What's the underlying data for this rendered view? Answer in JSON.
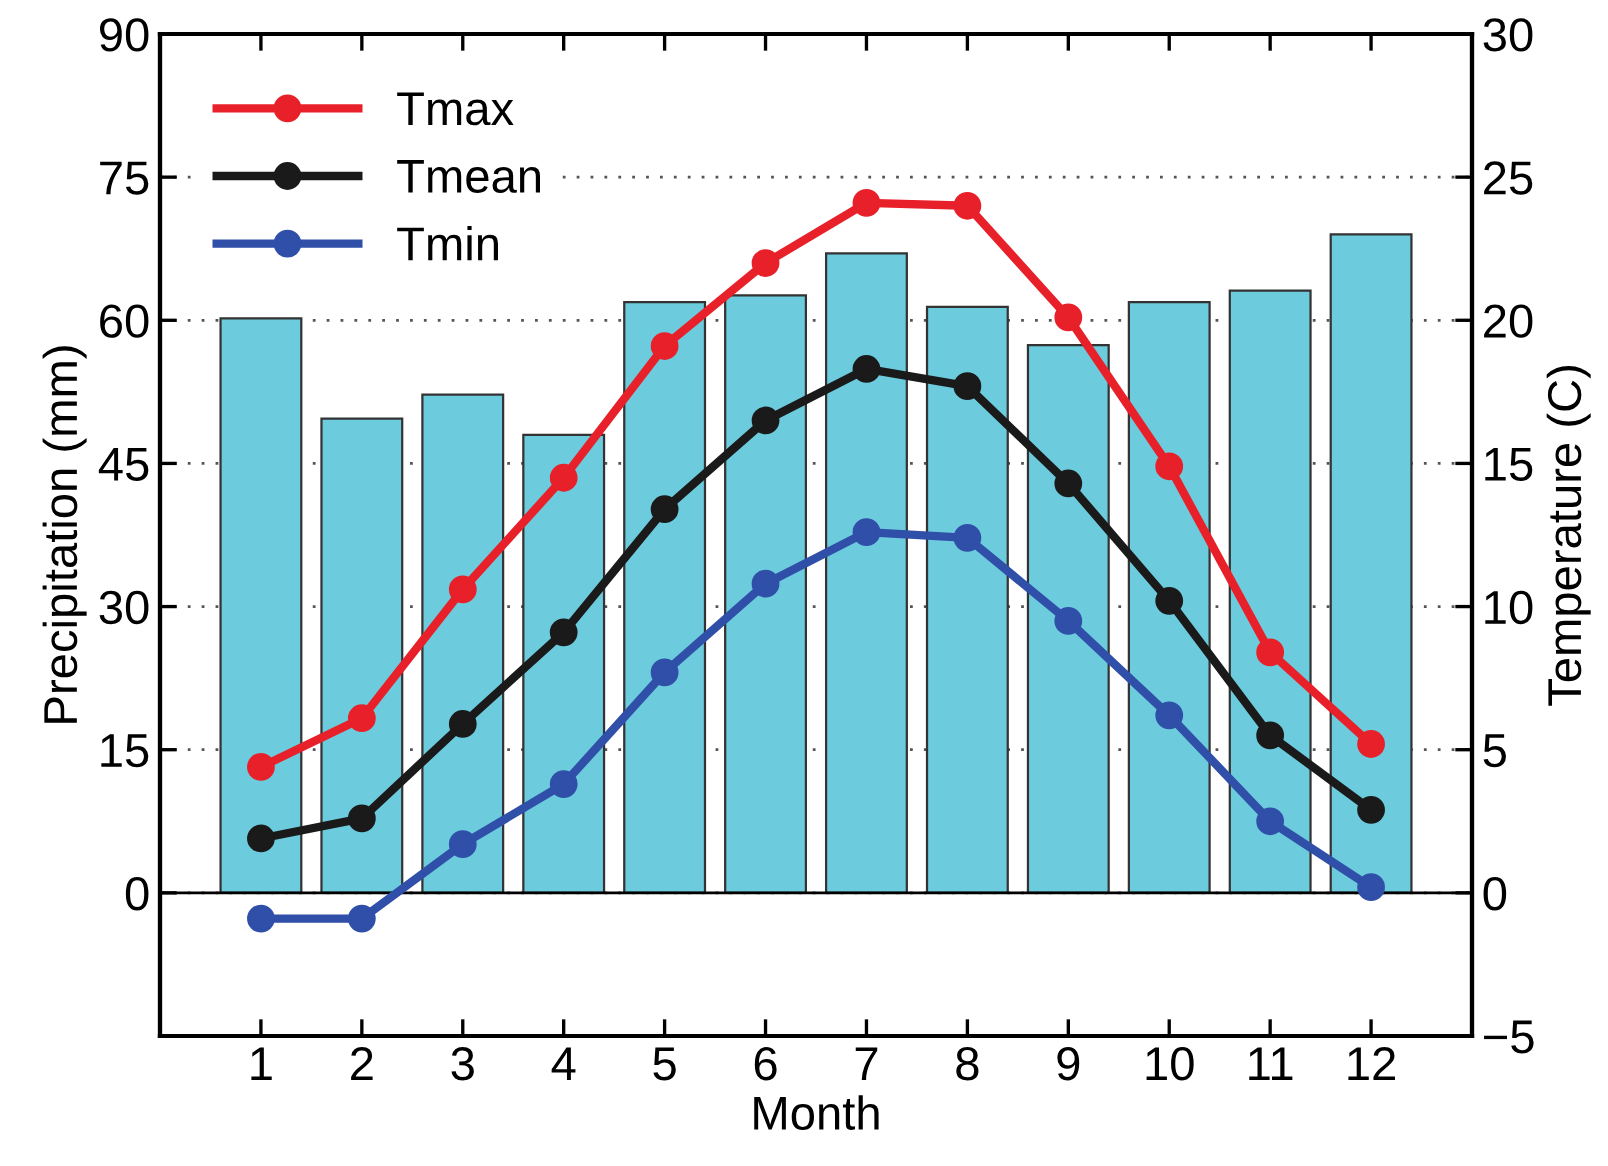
{
  "chart_data": {
    "type": "bar",
    "xlabel": "Month",
    "ylabel": "Precipitation (mm)",
    "y2label": "Temperature (C)",
    "x": [
      1,
      2,
      3,
      4,
      5,
      6,
      7,
      8,
      9,
      10,
      11,
      12
    ],
    "xlim": [
      0,
      13
    ],
    "xticks": [
      1,
      2,
      3,
      4,
      5,
      6,
      7,
      8,
      9,
      10,
      11,
      12
    ],
    "ylim": [
      -15,
      90
    ],
    "yticks": [
      0,
      15,
      30,
      45,
      60,
      75,
      90
    ],
    "y2lim": [
      -5,
      30
    ],
    "y2ticks": [
      -5,
      0,
      5,
      10,
      15,
      20,
      25,
      30
    ],
    "grid": "y",
    "legend": "top left",
    "marker": "circle",
    "ref_lines": [
      {
        "axis": "y",
        "value": 0,
        "color": "#000000",
        "line_style": "solid"
      }
    ],
    "series": [
      {
        "color": "#6ccbdc",
        "values": [
          60.2,
          49.7,
          52.2,
          48.0,
          61.9,
          62.6,
          67.0,
          61.4,
          57.4,
          61.9,
          63.1,
          69.0
        ]
      },
      {
        "type": "line",
        "axis": "y2",
        "name": "Tmax",
        "color": "#e8202a",
        "values": [
          4.4,
          6.1,
          10.6,
          14.5,
          19.1,
          22.0,
          24.1,
          24.0,
          20.1,
          14.9,
          8.4,
          5.2
        ]
      },
      {
        "type": "line",
        "axis": "y2",
        "name": "Tmean",
        "color": "#1a1a1a",
        "values": [
          1.9,
          2.6,
          5.9,
          9.1,
          13.4,
          16.5,
          18.3,
          17.7,
          14.3,
          10.2,
          5.5,
          2.9
        ]
      },
      {
        "type": "line",
        "axis": "y2",
        "name": "Tmin",
        "color": "#2f4fa8",
        "values": [
          -0.9,
          -0.9,
          1.7,
          3.8,
          7.7,
          10.8,
          12.6,
          12.4,
          9.5,
          6.2,
          2.5,
          0.2
        ]
      }
    ]
  }
}
